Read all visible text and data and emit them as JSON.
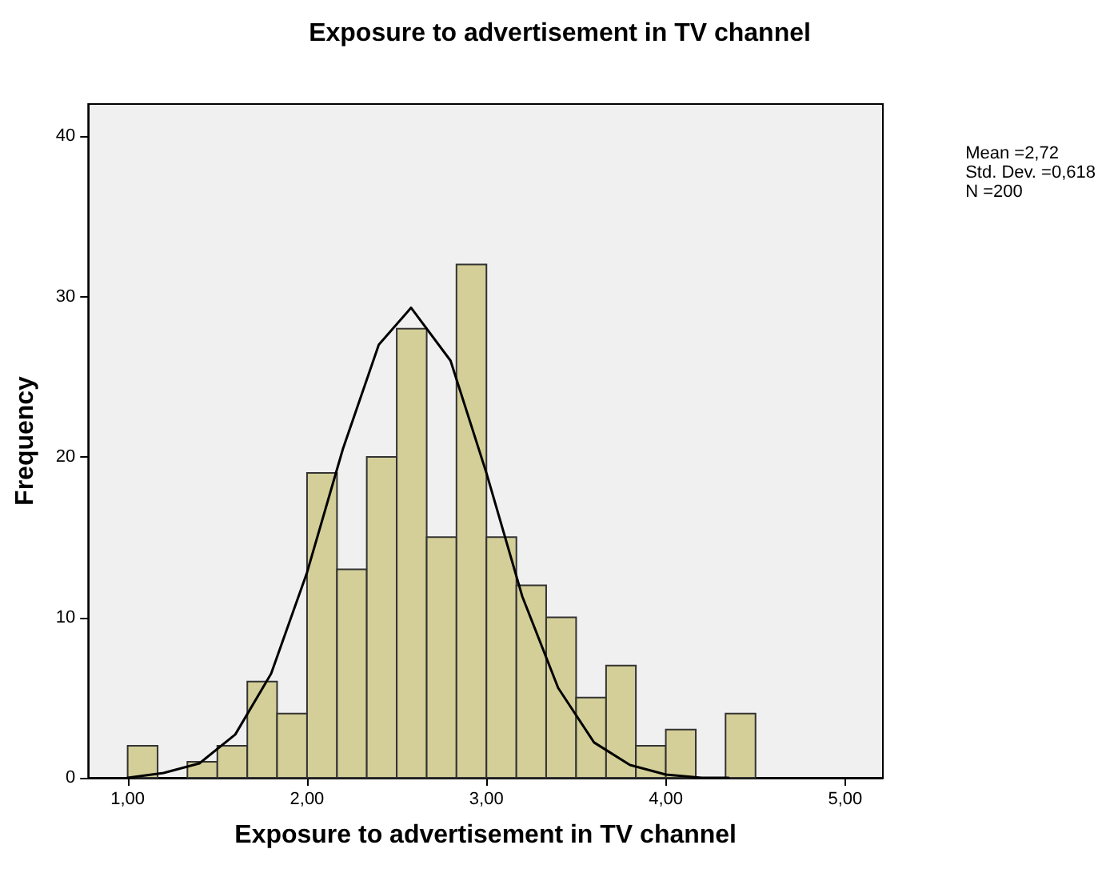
{
  "chart_data": {
    "type": "histogram",
    "title": "Exposure to advertisement in TV channel",
    "xlabel": "Exposure to advertisement in TV channel",
    "ylabel": "Frequency",
    "annotations": [
      "Mean =2,72",
      "Std. Dev. =0,618",
      "N =200"
    ],
    "series": [
      {
        "color": "#d4cf98",
        "bins": [
          1.0,
          1.167,
          1.333,
          1.5,
          1.667,
          1.833,
          2.0,
          2.167,
          2.333,
          2.5,
          2.667,
          2.833,
          3.0,
          3.167,
          3.333,
          3.5,
          3.667,
          3.833,
          4.0,
          4.167,
          4.333,
          4.5
        ],
        "values": [
          2,
          0,
          1,
          2,
          6,
          4,
          19,
          13,
          20,
          28,
          15,
          32,
          15,
          12,
          10,
          5,
          7,
          2,
          3,
          0,
          4
        ]
      },
      {
        "type": "line",
        "color": "#000000",
        "marker": "none",
        "x": [
          1.0,
          1.2,
          1.4,
          1.6,
          1.8,
          2.0,
          2.2,
          2.4,
          2.58,
          2.8,
          3.0,
          3.2,
          3.4,
          3.6,
          3.8,
          4.0,
          4.2,
          4.35
        ],
        "values": [
          0,
          0.3,
          0.9,
          2.7,
          6.5,
          12.8,
          20.5,
          27,
          29.3,
          26,
          19,
          11.3,
          5.6,
          2.2,
          0.8,
          0.2,
          0,
          0
        ]
      }
    ],
    "xlim": [
      0.78,
      5.21
    ],
    "xticks": [
      {
        "value": 1,
        "label": "1,00"
      },
      {
        "value": 2,
        "label": "2,00"
      },
      {
        "value": 3,
        "label": "3,00"
      },
      {
        "value": 4,
        "label": "4,00"
      },
      {
        "value": 5,
        "label": "5,00"
      }
    ],
    "ylim": [
      0,
      42
    ],
    "yticks": [
      0,
      10,
      20,
      30,
      40
    ],
    "grid": false
  }
}
